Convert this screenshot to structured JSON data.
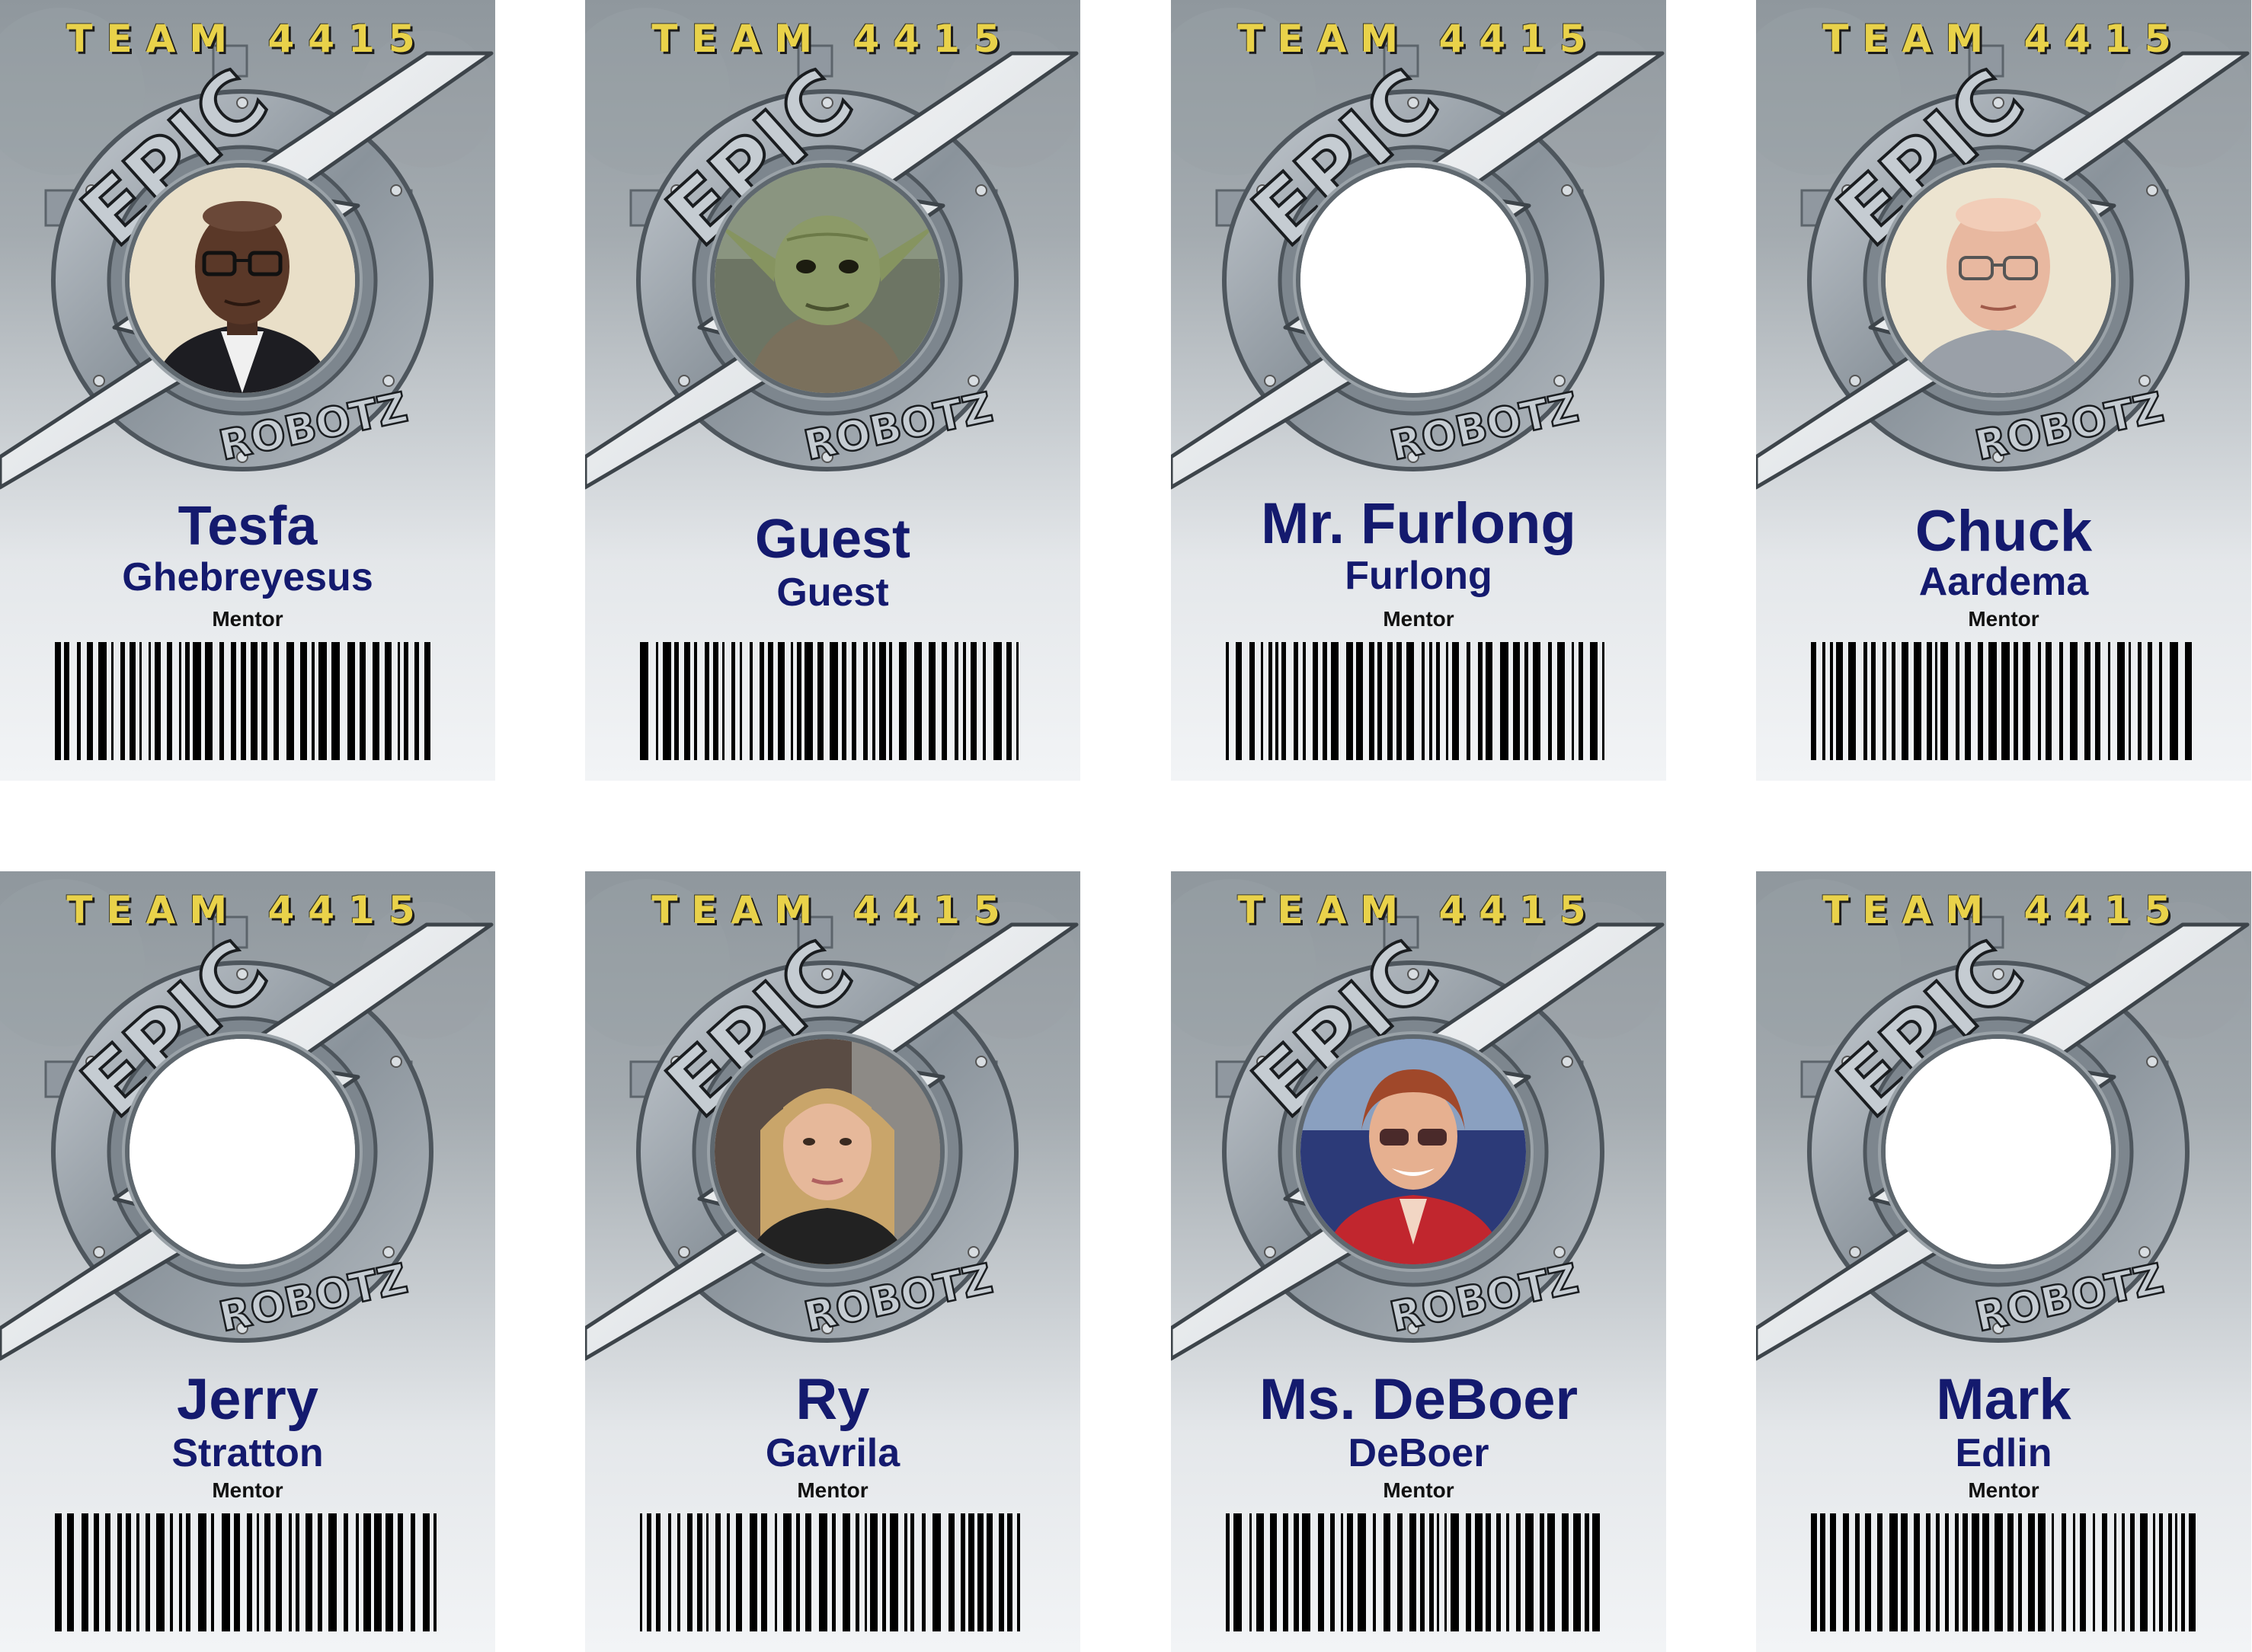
{
  "badges": [
    {
      "team": "TEAM 4415",
      "logo_top": "EPIC",
      "logo_bottom": "ROBOTZ",
      "first": "Tesfa",
      "last": "Ghebreyesus",
      "role": "Mentor",
      "photo": "man-glasses"
    },
    {
      "team": "TEAM 4415",
      "logo_top": "EPIC",
      "logo_bottom": "ROBOTZ",
      "first": "Guest",
      "last": "Guest",
      "role": "",
      "photo": "yoda"
    },
    {
      "team": "TEAM 4415",
      "logo_top": "EPIC",
      "logo_bottom": "ROBOTZ",
      "first": "Mr. Furlong",
      "last": "Furlong",
      "role": "Mentor",
      "photo": "blank"
    },
    {
      "team": "TEAM 4415",
      "logo_top": "EPIC",
      "logo_bottom": "ROBOTZ",
      "first": "Chuck",
      "last": "Aardema",
      "role": "Mentor",
      "photo": "older-man-glasses"
    },
    {
      "team": "TEAM 4415",
      "logo_top": "EPIC",
      "logo_bottom": "ROBOTZ",
      "first": "Jerry",
      "last": "Stratton",
      "role": "Mentor",
      "photo": "blank"
    },
    {
      "team": "TEAM 4415",
      "logo_top": "EPIC",
      "logo_bottom": "ROBOTZ",
      "first": "Ry",
      "last": "Gavrila",
      "role": "Mentor",
      "photo": "woman-blonde"
    },
    {
      "team": "TEAM 4415",
      "logo_top": "EPIC",
      "logo_bottom": "ROBOTZ",
      "first": "Ms. DeBoer",
      "last": "DeBoer",
      "role": "Mentor",
      "photo": "woman-red-jacket"
    },
    {
      "team": "TEAM 4415",
      "logo_top": "EPIC",
      "logo_bottom": "ROBOTZ",
      "first": "Mark",
      "last": "Edlin",
      "role": "Mentor",
      "photo": "blank"
    }
  ],
  "colors": {
    "team_text": "#e9d24a",
    "name_text": "#141a6e",
    "role_text": "#111111"
  }
}
